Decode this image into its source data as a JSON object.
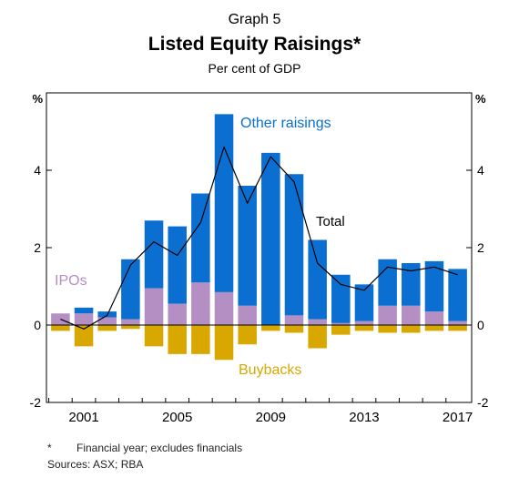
{
  "header": {
    "graph_number": "Graph 5",
    "title": "Listed Equity Raisings*",
    "subtitle": "Per cent of GDP"
  },
  "footnotes": {
    "marker": "*",
    "note": "Financial year; excludes financials",
    "sources": "Sources:  ASX; RBA"
  },
  "colors": {
    "other_raisings": "#0a6fd0",
    "ipos": "#b48fc4",
    "buybacks": "#d9a800",
    "total_line": "#000000",
    "axis": "#000000"
  },
  "chart_data": {
    "type": "bar",
    "stacked": true,
    "y_unit_left": "%",
    "y_unit_right": "%",
    "ylim": [
      -2,
      6
    ],
    "y_ticks": [
      -2,
      0,
      2,
      4
    ],
    "x": [
      2000,
      2001,
      2002,
      2003,
      2004,
      2005,
      2006,
      2007,
      2008,
      2009,
      2010,
      2011,
      2012,
      2013,
      2014,
      2015,
      2016,
      2017
    ],
    "x_tick_labels": [
      "2001",
      "2005",
      "2009",
      "2013",
      "2017"
    ],
    "x_tick_values": [
      2001,
      2005,
      2009,
      2013,
      2017
    ],
    "series": [
      {
        "name": "IPOs",
        "key": "ipos",
        "values": [
          0.3,
          0.3,
          0.2,
          0.15,
          0.95,
          0.55,
          1.1,
          0.85,
          0.5,
          0.0,
          0.25,
          0.15,
          0.05,
          0.1,
          0.5,
          0.5,
          0.35,
          0.1
        ]
      },
      {
        "name": "Other raisings",
        "key": "other_raisings",
        "values": [
          0.0,
          0.15,
          0.15,
          1.55,
          1.75,
          2.0,
          2.3,
          4.6,
          3.1,
          4.45,
          3.65,
          2.05,
          1.25,
          0.95,
          1.2,
          1.1,
          1.3,
          1.35
        ]
      },
      {
        "name": "Buybacks",
        "key": "buybacks",
        "values": [
          -0.15,
          -0.55,
          -0.15,
          -0.1,
          -0.55,
          -0.75,
          -0.75,
          -0.9,
          -0.5,
          -0.15,
          -0.2,
          -0.6,
          -0.25,
          -0.15,
          -0.2,
          -0.2,
          -0.15,
          -0.15
        ]
      },
      {
        "name": "Total",
        "key": "total",
        "type": "line",
        "values": [
          0.15,
          -0.1,
          0.25,
          1.55,
          2.15,
          1.8,
          2.65,
          4.6,
          3.15,
          4.35,
          3.7,
          1.6,
          1.05,
          0.9,
          1.5,
          1.4,
          1.5,
          1.3
        ]
      }
    ],
    "annotations": [
      {
        "text": "Other raisings",
        "series": "other_raisings"
      },
      {
        "text": "Total",
        "series": "total"
      },
      {
        "text": "IPOs",
        "series": "ipos"
      },
      {
        "text": "Buybacks",
        "series": "buybacks"
      }
    ],
    "grid": false,
    "legend": "inline labels"
  }
}
